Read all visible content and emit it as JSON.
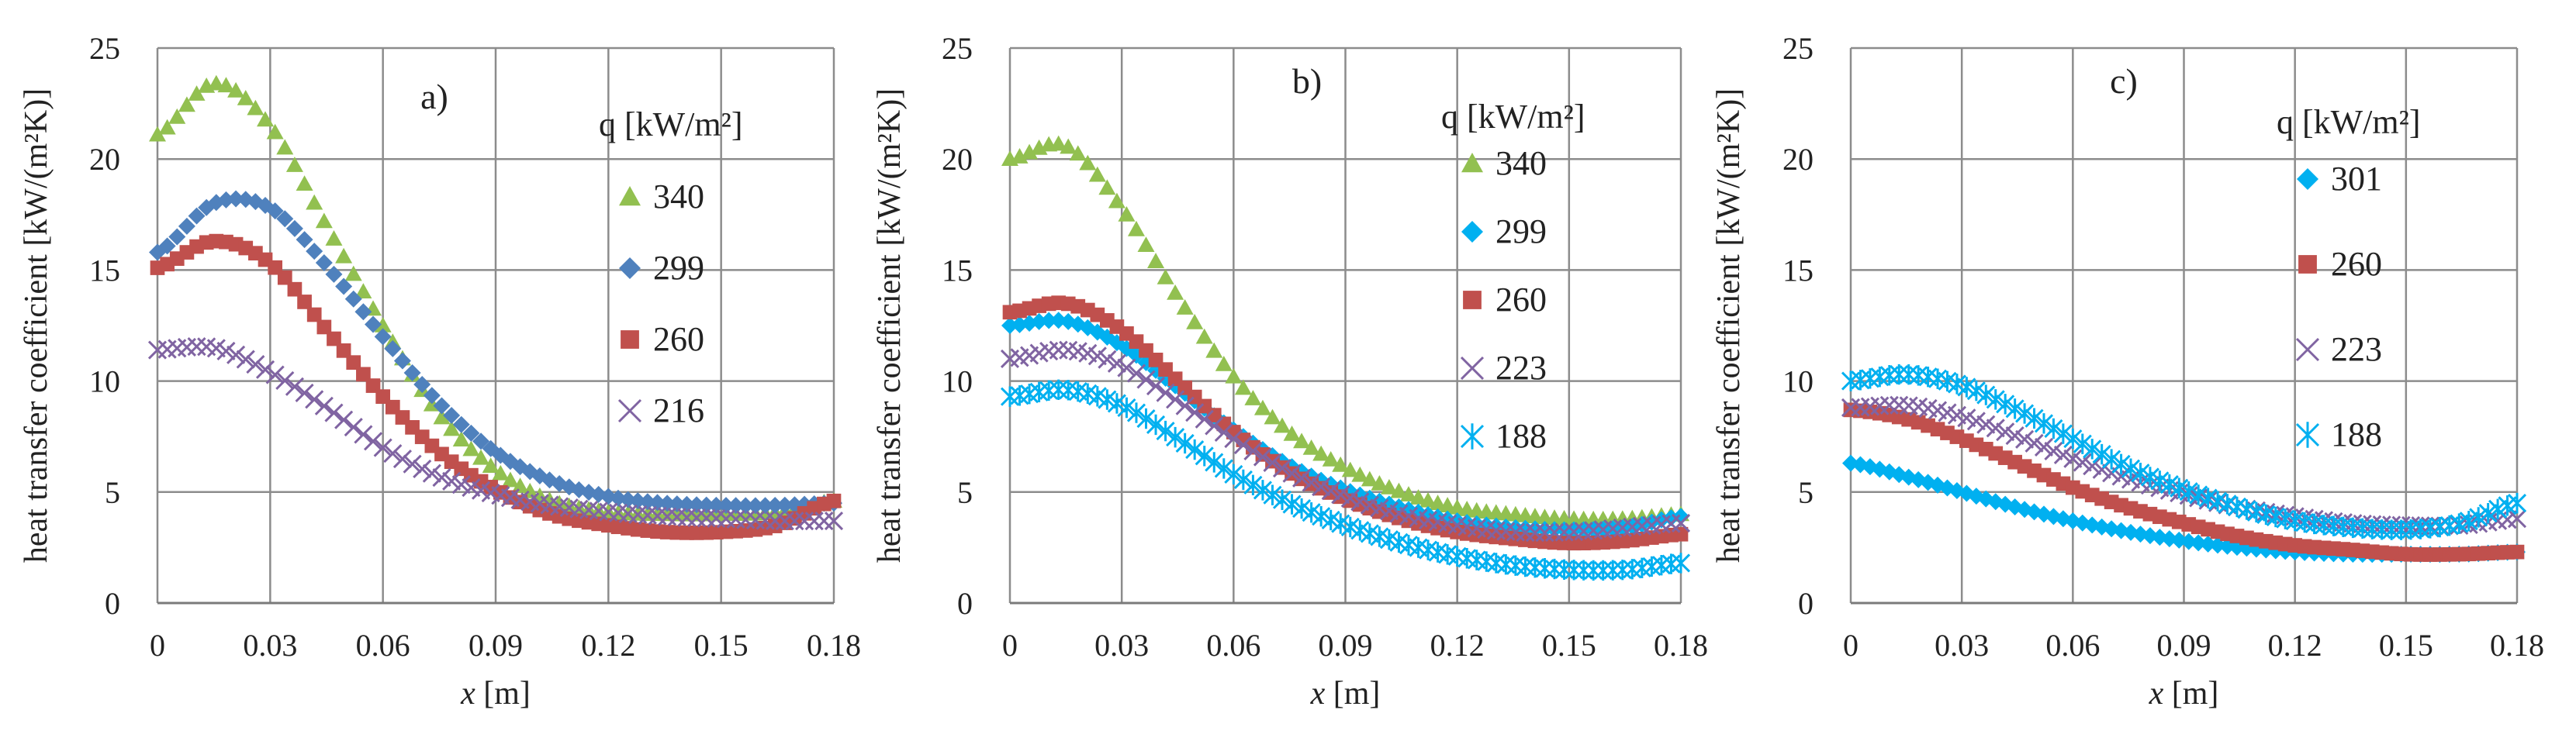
{
  "figure": {
    "x_axis_label_var": "x",
    "x_axis_label_unit": " [m]",
    "y_axis_label": "heat transfer coefficient [kW/(m²K)]",
    "legend_title": "q [kW/m²]"
  },
  "chart_data": [
    {
      "type": "scatter",
      "panel_label": "a)",
      "xlabel": "x [m]",
      "ylabel": "heat transfer coefficient [kW/(m²K)]",
      "xlim": [
        0,
        0.18
      ],
      "ylim": [
        0,
        25
      ],
      "xticks": [
        "0",
        "0.03",
        "0.06",
        "0.09",
        "0.12",
        "0.15",
        "0.18"
      ],
      "yticks": [
        "0",
        "5",
        "10",
        "15",
        "20",
        "25"
      ],
      "grid": true,
      "legend_title": "q [kW/m²]",
      "series": [
        {
          "name": "340",
          "marker": "triangle",
          "color": "#92c050",
          "x": [
            0,
            0.015,
            0.03,
            0.045,
            0.06,
            0.075,
            0.09,
            0.105,
            0.12,
            0.135,
            0.15,
            0.165,
            0.18
          ],
          "y": [
            21.1,
            23.4,
            21.5,
            17.0,
            12.5,
            8.5,
            6.0,
            4.6,
            4.1,
            4.0,
            4.0,
            4.1,
            4.6
          ]
        },
        {
          "name": "299",
          "marker": "diamond",
          "color": "#4f81bd",
          "x": [
            0,
            0.015,
            0.03,
            0.045,
            0.06,
            0.075,
            0.09,
            0.105,
            0.12,
            0.135,
            0.15,
            0.165,
            0.18
          ],
          "y": [
            15.8,
            18.0,
            17.8,
            15.2,
            12.0,
            9.0,
            6.8,
            5.5,
            4.8,
            4.5,
            4.4,
            4.4,
            4.5
          ]
        },
        {
          "name": "260",
          "marker": "square",
          "color": "#c0504d",
          "x": [
            0,
            0.015,
            0.03,
            0.045,
            0.06,
            0.075,
            0.09,
            0.105,
            0.12,
            0.135,
            0.15,
            0.165,
            0.18
          ],
          "y": [
            15.1,
            16.3,
            15.3,
            12.3,
            9.3,
            6.8,
            5.1,
            4.0,
            3.5,
            3.2,
            3.2,
            3.5,
            4.6
          ]
        },
        {
          "name": "216",
          "marker": "x",
          "color": "#8064a2",
          "x": [
            0,
            0.015,
            0.03,
            0.045,
            0.06,
            0.075,
            0.09,
            0.105,
            0.12,
            0.135,
            0.15,
            0.165,
            0.18
          ],
          "y": [
            11.4,
            11.5,
            10.4,
            8.8,
            7.0,
            5.7,
            4.9,
            4.4,
            4.1,
            3.9,
            3.8,
            3.7,
            3.7
          ]
        }
      ]
    },
    {
      "type": "scatter",
      "panel_label": "b)",
      "xlabel": "x [m]",
      "ylabel": "heat transfer coefficient [kW/(m²K)]",
      "xlim": [
        0,
        0.18
      ],
      "ylim": [
        0,
        25
      ],
      "xticks": [
        "0",
        "0.03",
        "0.06",
        "0.09",
        "0.12",
        "0.15",
        "0.18"
      ],
      "yticks": [
        "0",
        "5",
        "10",
        "15",
        "20",
        "25"
      ],
      "grid": true,
      "legend_title": "q [kW/m²]",
      "series": [
        {
          "name": "340",
          "marker": "triangle",
          "color": "#92c050",
          "x": [
            0,
            0.015,
            0.03,
            0.045,
            0.06,
            0.075,
            0.09,
            0.105,
            0.12,
            0.135,
            0.15,
            0.165,
            0.18
          ],
          "y": [
            20.0,
            20.6,
            17.8,
            13.8,
            10.2,
            7.7,
            6.1,
            5.0,
            4.3,
            4.0,
            3.8,
            3.8,
            4.0
          ]
        },
        {
          "name": "299",
          "marker": "diamond",
          "color": "#00b0f0",
          "x": [
            0,
            0.015,
            0.03,
            0.045,
            0.06,
            0.075,
            0.09,
            0.105,
            0.12,
            0.135,
            0.15,
            0.165,
            0.18
          ],
          "y": [
            12.5,
            12.7,
            11.6,
            9.7,
            7.8,
            6.2,
            5.1,
            4.3,
            3.7,
            3.4,
            3.3,
            3.4,
            3.9
          ]
        },
        {
          "name": "260",
          "marker": "square",
          "color": "#c0504d",
          "x": [
            0,
            0.015,
            0.03,
            0.045,
            0.06,
            0.075,
            0.09,
            0.105,
            0.12,
            0.135,
            0.15,
            0.165,
            0.18
          ],
          "y": [
            13.1,
            13.5,
            12.3,
            10.0,
            7.7,
            5.9,
            4.7,
            3.8,
            3.2,
            2.9,
            2.7,
            2.8,
            3.1
          ]
        },
        {
          "name": "223",
          "marker": "x",
          "color": "#8064a2",
          "x": [
            0,
            0.015,
            0.03,
            0.045,
            0.06,
            0.075,
            0.09,
            0.105,
            0.12,
            0.135,
            0.15,
            0.165,
            0.18
          ],
          "y": [
            11.0,
            11.4,
            10.7,
            9.1,
            7.4,
            5.9,
            4.8,
            4.0,
            3.5,
            3.2,
            3.2,
            3.4,
            3.6
          ]
        },
        {
          "name": "188",
          "marker": "asterisk",
          "color": "#00b0f0",
          "x": [
            0,
            0.015,
            0.03,
            0.045,
            0.06,
            0.075,
            0.09,
            0.105,
            0.12,
            0.135,
            0.15,
            0.165,
            0.18
          ],
          "y": [
            9.3,
            9.6,
            8.9,
            7.4,
            5.8,
            4.5,
            3.5,
            2.7,
            2.1,
            1.7,
            1.5,
            1.5,
            1.8
          ]
        }
      ]
    },
    {
      "type": "scatter",
      "panel_label": "c)",
      "xlabel": "x [m]",
      "ylabel": "heat transfer coefficient [kW/(m²K)]",
      "xlim": [
        0,
        0.18
      ],
      "ylim": [
        0,
        25
      ],
      "xticks": [
        "0",
        "0.03",
        "0.06",
        "0.09",
        "0.12",
        "0.15",
        "0.18"
      ],
      "yticks": [
        "0",
        "5",
        "10",
        "15",
        "20",
        "25"
      ],
      "grid": true,
      "legend_title": "q [kW/m²]",
      "series": [
        {
          "name": "301",
          "marker": "diamond",
          "color": "#00b0f0",
          "x": [
            0,
            0.015,
            0.03,
            0.045,
            0.06,
            0.075,
            0.09,
            0.105,
            0.12,
            0.135,
            0.15,
            0.165,
            0.18
          ],
          "y": [
            6.3,
            5.7,
            5.0,
            4.3,
            3.7,
            3.2,
            2.8,
            2.5,
            2.3,
            2.2,
            2.2,
            2.2,
            2.3
          ]
        },
        {
          "name": "260",
          "marker": "square",
          "color": "#c0504d",
          "x": [
            0,
            0.015,
            0.03,
            0.045,
            0.06,
            0.075,
            0.09,
            0.105,
            0.12,
            0.135,
            0.15,
            0.165,
            0.18
          ],
          "y": [
            8.7,
            8.3,
            7.4,
            6.3,
            5.2,
            4.3,
            3.6,
            3.0,
            2.6,
            2.4,
            2.2,
            2.2,
            2.3
          ]
        },
        {
          "name": "223",
          "marker": "x",
          "color": "#8064a2",
          "x": [
            0,
            0.015,
            0.03,
            0.045,
            0.06,
            0.075,
            0.09,
            0.105,
            0.12,
            0.135,
            0.15,
            0.165,
            0.18
          ],
          "y": [
            8.8,
            8.9,
            8.4,
            7.5,
            6.5,
            5.6,
            4.9,
            4.3,
            3.9,
            3.6,
            3.5,
            3.5,
            3.8
          ]
        },
        {
          "name": "188",
          "marker": "asterisk",
          "color": "#00b0f0",
          "x": [
            0,
            0.015,
            0.03,
            0.045,
            0.06,
            0.075,
            0.09,
            0.105,
            0.12,
            0.135,
            0.15,
            0.165,
            0.18
          ],
          "y": [
            10.0,
            10.3,
            9.8,
            8.7,
            7.4,
            6.1,
            5.1,
            4.3,
            3.7,
            3.4,
            3.3,
            3.6,
            4.5
          ]
        }
      ]
    }
  ]
}
